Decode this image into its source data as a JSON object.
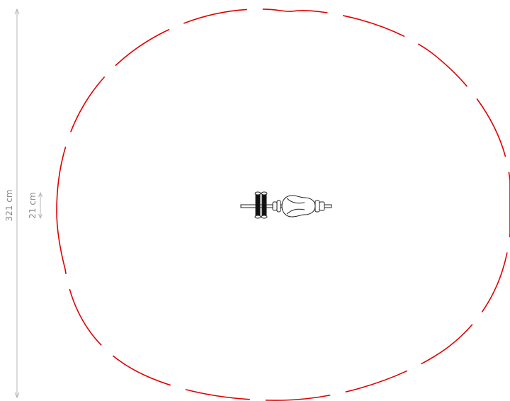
{
  "dimensions": {
    "overall_height": "321 cm",
    "equipment_width": "21 cm"
  },
  "colors": {
    "safety_zone": "#e00000",
    "dimension_line": "#b4b4b4",
    "dimension_text": "#888888",
    "equipment_outline": "#222222",
    "equipment_fill": "#111111"
  },
  "elements": {
    "safety_zone_style": "dashed-outline",
    "equipment_icon": "fitness-equipment-top-view-icon"
  }
}
